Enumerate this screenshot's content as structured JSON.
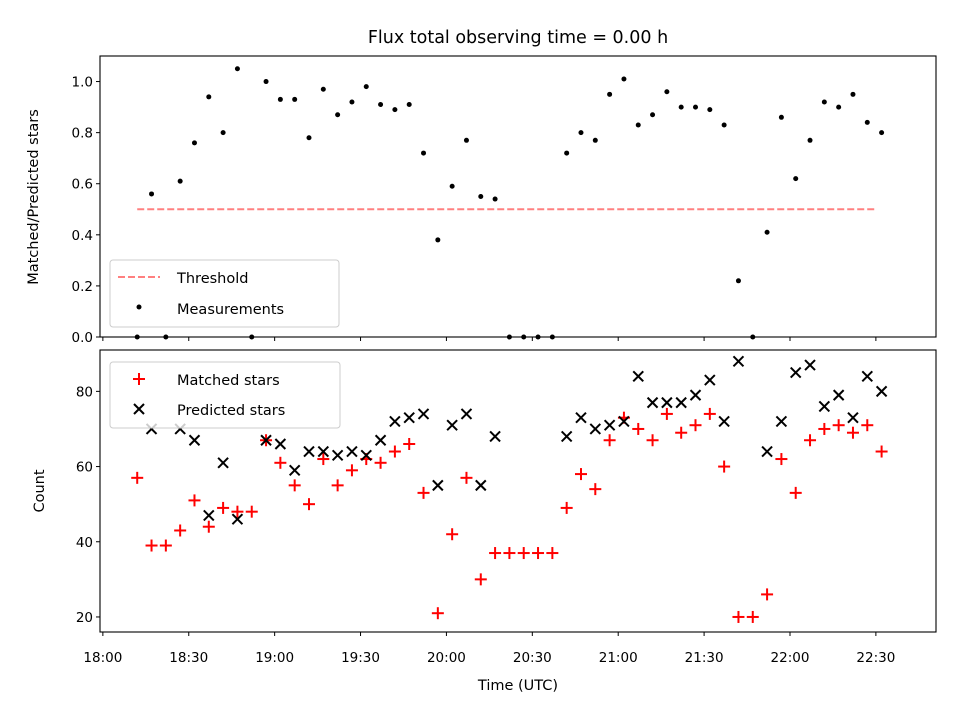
{
  "title": "Flux total observing time = 0.00 h",
  "chart_data": [
    {
      "type": "scatter",
      "ylabel": "Matched/Predicted stars",
      "xlabel": "",
      "ylim": [
        0,
        1.1
      ],
      "xlim": [
        "17:59",
        "22:51"
      ],
      "yticks": [
        0.0,
        0.2,
        0.4,
        0.6,
        0.8,
        1.0
      ],
      "ytick_labels": [
        "0.0",
        "0.2",
        "0.4",
        "0.6",
        "0.8",
        "1.0"
      ],
      "grid": false,
      "legend": "lower-left",
      "threshold": {
        "name": "Threshold",
        "y": 0.5,
        "x_start": "18:12",
        "x_end": "22:30",
        "color": "#ff8080"
      },
      "series": [
        {
          "name": "Measurements",
          "color": "#000000",
          "x": [
            "18:12",
            "18:17",
            "18:22",
            "18:27",
            "18:32",
            "18:37",
            "18:42",
            "18:47",
            "18:52",
            "18:57",
            "19:02",
            "19:07",
            "19:12",
            "19:17",
            "19:22",
            "19:27",
            "19:32",
            "19:37",
            "19:42",
            "19:47",
            "19:52",
            "19:57",
            "20:02",
            "20:07",
            "20:12",
            "20:17",
            "20:22",
            "20:27",
            "20:32",
            "20:37",
            "20:42",
            "20:47",
            "20:52",
            "20:57",
            "21:02",
            "21:07",
            "21:12",
            "21:17",
            "21:22",
            "21:27",
            "21:32",
            "21:37",
            "21:42",
            "21:47",
            "21:52",
            "21:57",
            "22:02",
            "22:07",
            "22:12",
            "22:17",
            "22:22",
            "22:27",
            "22:32"
          ],
          "values": [
            0.0,
            0.56,
            0.0,
            0.61,
            0.76,
            0.94,
            0.8,
            1.05,
            0.0,
            1.0,
            0.93,
            0.93,
            0.78,
            0.97,
            0.87,
            0.92,
            0.98,
            0.91,
            0.89,
            0.91,
            0.72,
            0.38,
            0.59,
            0.77,
            0.55,
            0.54,
            0.0,
            0.0,
            0.0,
            0.0,
            0.72,
            0.8,
            0.77,
            0.95,
            1.01,
            0.83,
            0.87,
            0.96,
            0.9,
            0.9,
            0.89,
            0.83,
            0.22,
            0.0,
            0.41,
            0.86,
            0.62,
            0.77,
            0.92,
            0.9,
            0.95,
            0.84,
            0.8
          ]
        }
      ]
    },
    {
      "type": "scatter",
      "ylabel": "Count",
      "xlabel": "Time (UTC)",
      "ylim": [
        16,
        91
      ],
      "xlim": [
        "17:59",
        "22:51"
      ],
      "yticks": [
        20,
        40,
        60,
        80
      ],
      "ytick_labels": [
        "20",
        "40",
        "60",
        "80"
      ],
      "xticks": [
        "18:00",
        "18:30",
        "19:00",
        "19:30",
        "20:00",
        "20:30",
        "21:00",
        "21:30",
        "22:00",
        "22:30"
      ],
      "grid": false,
      "legend": "upper-left",
      "series": [
        {
          "name": "Matched stars",
          "color": "#ff0000",
          "marker": "+",
          "x": [
            "18:12",
            "18:17",
            "18:22",
            "18:27",
            "18:32",
            "18:37",
            "18:42",
            "18:47",
            "18:52",
            "18:57",
            "19:02",
            "19:07",
            "19:12",
            "19:17",
            "19:22",
            "19:27",
            "19:32",
            "19:37",
            "19:42",
            "19:47",
            "19:52",
            "19:57",
            "20:02",
            "20:07",
            "20:12",
            "20:17",
            "20:22",
            "20:27",
            "20:32",
            "20:37",
            "20:42",
            "20:47",
            "20:52",
            "20:57",
            "21:02",
            "21:07",
            "21:12",
            "21:17",
            "21:22",
            "21:27",
            "21:32",
            "21:37",
            "21:42",
            "21:47",
            "21:52",
            "21:57",
            "22:02",
            "22:07",
            "22:12",
            "22:17",
            "22:22",
            "22:27",
            "22:32"
          ],
          "values": [
            57,
            39,
            39,
            43,
            51,
            44,
            49,
            48,
            48,
            67,
            61,
            55,
            50,
            62,
            55,
            59,
            62,
            61,
            64,
            66,
            53,
            21,
            42,
            57,
            30,
            37,
            37,
            37,
            37,
            37,
            49,
            58,
            54,
            67,
            73,
            70,
            67,
            74,
            69,
            71,
            74,
            60,
            20,
            20,
            26,
            62,
            53,
            67,
            70,
            71,
            69,
            71,
            64
          ]
        },
        {
          "name": "Predicted stars",
          "color": "#000000",
          "marker": "x",
          "x": [
            "18:17",
            "18:27",
            "18:32",
            "18:37",
            "18:42",
            "18:47",
            "18:57",
            "19:02",
            "19:07",
            "19:12",
            "19:17",
            "19:22",
            "19:27",
            "19:32",
            "19:37",
            "19:42",
            "19:47",
            "19:52",
            "19:57",
            "20:02",
            "20:07",
            "20:12",
            "20:17",
            "20:42",
            "20:47",
            "20:52",
            "20:57",
            "21:02",
            "21:07",
            "21:12",
            "21:17",
            "21:22",
            "21:27",
            "21:32",
            "21:37",
            "21:42",
            "21:52",
            "21:57",
            "22:02",
            "22:07",
            "22:12",
            "22:17",
            "22:22",
            "22:27",
            "22:32"
          ],
          "values": [
            70,
            70,
            67,
            47,
            61,
            46,
            67,
            66,
            59,
            64,
            64,
            63,
            64,
            63,
            67,
            72,
            73,
            74,
            55,
            71,
            74,
            55,
            68,
            68,
            73,
            70,
            71,
            72,
            84,
            77,
            77,
            77,
            79,
            83,
            72,
            88,
            64,
            72,
            85,
            87,
            76,
            79,
            73,
            84,
            80
          ]
        }
      ]
    }
  ]
}
